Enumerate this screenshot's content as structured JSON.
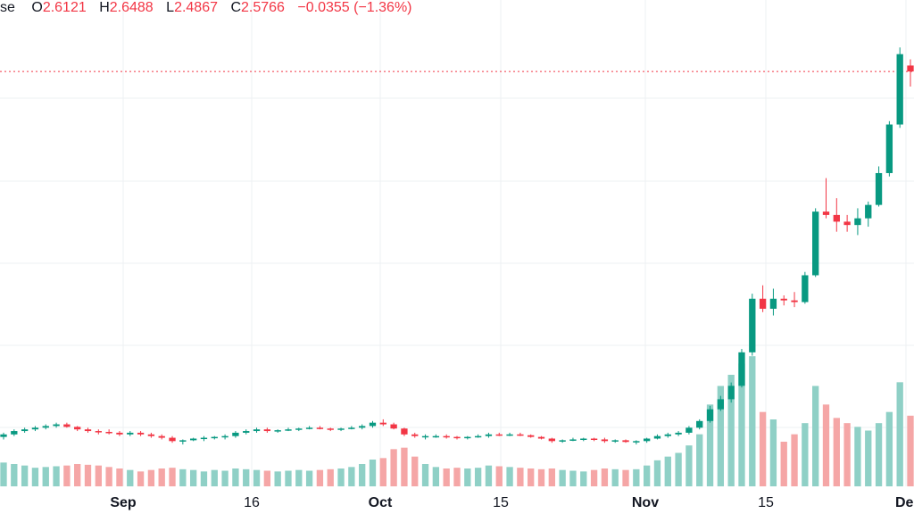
{
  "legend": {
    "series_label": "se",
    "o_label": "O",
    "o_value": "2.6121",
    "h_label": "H",
    "h_value": "2.6488",
    "l_label": "L",
    "l_value": "2.4867",
    "c_label": "C",
    "c_value": "2.5766",
    "change": "−0.0355 (−1.36%)"
  },
  "colors": {
    "up": "#089981",
    "down": "#f23645",
    "volume_up": "#8fd0c6",
    "volume_down": "#f5a6a6",
    "grid": "#eef0f3",
    "price_line": "#f23645"
  },
  "chart_data": {
    "type": "candlestick",
    "x_ticks": [
      {
        "label": "Sep",
        "bold": true
      },
      {
        "label": "16",
        "bold": false
      },
      {
        "label": "Oct",
        "bold": true
      },
      {
        "label": "15",
        "bold": false
      },
      {
        "label": "Nov",
        "bold": true
      },
      {
        "label": "15",
        "bold": false
      },
      {
        "label": "Dec",
        "bold": true
      }
    ],
    "last_close": 2.5766,
    "ylim": [
      0.1,
      2.95
    ],
    "grid": true,
    "candles": [
      [
        0.395,
        0.42,
        0.38,
        0.41,
        32
      ],
      [
        0.41,
        0.44,
        0.4,
        0.43,
        30
      ],
      [
        0.43,
        0.45,
        0.42,
        0.44,
        28
      ],
      [
        0.44,
        0.46,
        0.43,
        0.45,
        25
      ],
      [
        0.45,
        0.47,
        0.44,
        0.46,
        26
      ],
      [
        0.46,
        0.48,
        0.45,
        0.47,
        27
      ],
      [
        0.47,
        0.48,
        0.45,
        0.455,
        28
      ],
      [
        0.455,
        0.46,
        0.43,
        0.44,
        30
      ],
      [
        0.44,
        0.45,
        0.42,
        0.43,
        29
      ],
      [
        0.43,
        0.44,
        0.41,
        0.425,
        28
      ],
      [
        0.425,
        0.44,
        0.41,
        0.42,
        26
      ],
      [
        0.42,
        0.43,
        0.4,
        0.41,
        24
      ],
      [
        0.41,
        0.43,
        0.4,
        0.42,
        22
      ],
      [
        0.42,
        0.43,
        0.4,
        0.41,
        20
      ],
      [
        0.41,
        0.42,
        0.39,
        0.4,
        22
      ],
      [
        0.4,
        0.41,
        0.38,
        0.39,
        24
      ],
      [
        0.39,
        0.4,
        0.36,
        0.37,
        25
      ],
      [
        0.37,
        0.38,
        0.35,
        0.375,
        23
      ],
      [
        0.375,
        0.39,
        0.37,
        0.385,
        22
      ],
      [
        0.385,
        0.4,
        0.37,
        0.39,
        20
      ],
      [
        0.39,
        0.4,
        0.38,
        0.395,
        22
      ],
      [
        0.395,
        0.41,
        0.38,
        0.4,
        21
      ],
      [
        0.4,
        0.43,
        0.39,
        0.42,
        24
      ],
      [
        0.42,
        0.44,
        0.41,
        0.43,
        23
      ],
      [
        0.43,
        0.45,
        0.42,
        0.44,
        22
      ],
      [
        0.44,
        0.45,
        0.42,
        0.43,
        21
      ],
      [
        0.43,
        0.44,
        0.42,
        0.435,
        20
      ],
      [
        0.435,
        0.45,
        0.43,
        0.44,
        21
      ],
      [
        0.44,
        0.45,
        0.43,
        0.445,
        22
      ],
      [
        0.445,
        0.46,
        0.44,
        0.45,
        21
      ],
      [
        0.45,
        0.46,
        0.44,
        0.445,
        22
      ],
      [
        0.445,
        0.45,
        0.43,
        0.44,
        23
      ],
      [
        0.44,
        0.45,
        0.43,
        0.445,
        24
      ],
      [
        0.445,
        0.46,
        0.44,
        0.45,
        26
      ],
      [
        0.45,
        0.47,
        0.44,
        0.46,
        30
      ],
      [
        0.46,
        0.49,
        0.45,
        0.48,
        36
      ],
      [
        0.48,
        0.5,
        0.46,
        0.47,
        38
      ],
      [
        0.47,
        0.48,
        0.44,
        0.445,
        50
      ],
      [
        0.445,
        0.45,
        0.4,
        0.41,
        52
      ],
      [
        0.41,
        0.42,
        0.39,
        0.4,
        40
      ],
      [
        0.4,
        0.41,
        0.38,
        0.4,
        30
      ],
      [
        0.4,
        0.41,
        0.39,
        0.4,
        26
      ],
      [
        0.4,
        0.41,
        0.385,
        0.395,
        24
      ],
      [
        0.395,
        0.4,
        0.38,
        0.39,
        25
      ],
      [
        0.39,
        0.4,
        0.38,
        0.395,
        24
      ],
      [
        0.395,
        0.41,
        0.39,
        0.4,
        25
      ],
      [
        0.4,
        0.42,
        0.39,
        0.41,
        28
      ],
      [
        0.41,
        0.42,
        0.4,
        0.405,
        27
      ],
      [
        0.405,
        0.42,
        0.4,
        0.41,
        26
      ],
      [
        0.41,
        0.42,
        0.4,
        0.405,
        25
      ],
      [
        0.405,
        0.41,
        0.39,
        0.395,
        24
      ],
      [
        0.395,
        0.4,
        0.38,
        0.385,
        23
      ],
      [
        0.385,
        0.39,
        0.36,
        0.37,
        24
      ],
      [
        0.37,
        0.38,
        0.36,
        0.375,
        22
      ],
      [
        0.375,
        0.39,
        0.37,
        0.38,
        21
      ],
      [
        0.38,
        0.39,
        0.37,
        0.385,
        20
      ],
      [
        0.385,
        0.39,
        0.37,
        0.38,
        22
      ],
      [
        0.38,
        0.39,
        0.36,
        0.37,
        24
      ],
      [
        0.37,
        0.38,
        0.36,
        0.375,
        23
      ],
      [
        0.375,
        0.38,
        0.36,
        0.365,
        22
      ],
      [
        0.365,
        0.375,
        0.35,
        0.37,
        23
      ],
      [
        0.37,
        0.39,
        0.36,
        0.385,
        28
      ],
      [
        0.385,
        0.41,
        0.38,
        0.4,
        35
      ],
      [
        0.4,
        0.42,
        0.39,
        0.41,
        40
      ],
      [
        0.41,
        0.43,
        0.4,
        0.42,
        45
      ],
      [
        0.42,
        0.46,
        0.41,
        0.45,
        55
      ],
      [
        0.45,
        0.5,
        0.44,
        0.49,
        70
      ],
      [
        0.49,
        0.58,
        0.48,
        0.56,
        110
      ],
      [
        0.56,
        0.64,
        0.55,
        0.62,
        135
      ],
      [
        0.62,
        0.72,
        0.6,
        0.7,
        150
      ],
      [
        0.7,
        0.92,
        0.69,
        0.9,
        165
      ],
      [
        0.9,
        1.25,
        0.88,
        1.22,
        175
      ],
      [
        1.22,
        1.3,
        1.14,
        1.16,
        100
      ],
      [
        1.16,
        1.28,
        1.12,
        1.22,
        90
      ],
      [
        1.22,
        1.24,
        1.18,
        1.21,
        60
      ],
      [
        1.21,
        1.26,
        1.17,
        1.2,
        70
      ],
      [
        1.2,
        1.38,
        1.19,
        1.36,
        85
      ],
      [
        1.36,
        1.76,
        1.35,
        1.74,
        135
      ],
      [
        1.74,
        1.94,
        1.7,
        1.72,
        110
      ],
      [
        1.72,
        1.82,
        1.62,
        1.68,
        92
      ],
      [
        1.68,
        1.72,
        1.62,
        1.66,
        85
      ],
      [
        1.66,
        1.76,
        1.6,
        1.7,
        80
      ],
      [
        1.7,
        1.8,
        1.65,
        1.78,
        75
      ],
      [
        1.78,
        2.01,
        1.77,
        1.97,
        85
      ],
      [
        1.97,
        2.28,
        1.95,
        2.26,
        100
      ],
      [
        2.26,
        2.72,
        2.24,
        2.68,
        140
      ],
      [
        2.6121,
        2.6488,
        2.4867,
        2.5766,
        95
      ]
    ]
  }
}
